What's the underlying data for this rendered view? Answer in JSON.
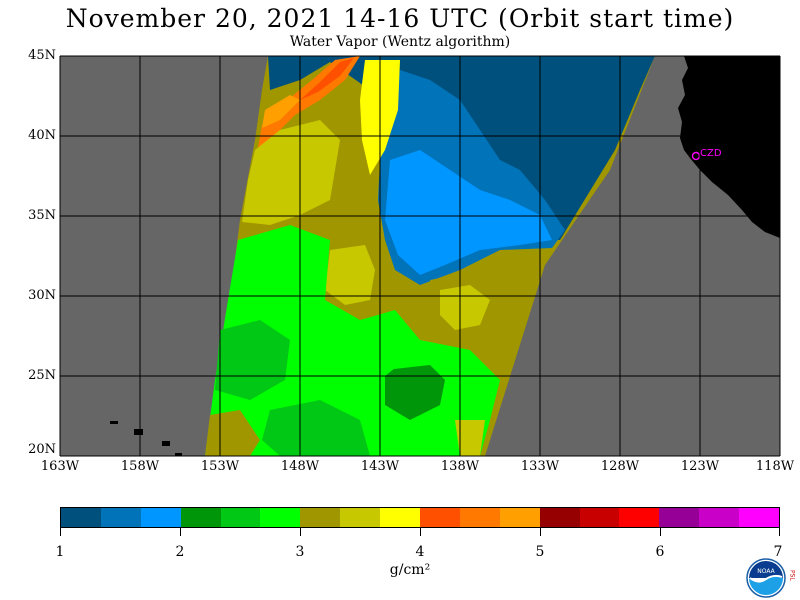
{
  "header": {
    "title": "November 20, 2021  14-16 UTC  (Orbit start time)",
    "subtitle": "Water Vapor (Wentz algorithm)"
  },
  "map": {
    "lat_labels": [
      "45N",
      "40N",
      "35N",
      "30N",
      "25N",
      "20N"
    ],
    "lon_labels": [
      "163W",
      "158W",
      "153W",
      "148W",
      "143W",
      "138W",
      "133W",
      "128W",
      "123W",
      "118W"
    ],
    "station_label": "CZD",
    "colors": {
      "no_data": "#666666",
      "land": "#000000",
      "grid": "#000000",
      "station": "#ff00ff"
    }
  },
  "colorbar": {
    "colors": [
      "#00507d",
      "#0073b9",
      "#0096ff",
      "#00960a",
      "#00c814",
      "#00ff00",
      "#a09600",
      "#c8c800",
      "#ffff00",
      "#ff5000",
      "#ff7800",
      "#ffa000",
      "#960000",
      "#c80000",
      "#ff0000",
      "#960096",
      "#c800c8",
      "#ff00ff"
    ],
    "tick_labels": [
      "1",
      "2",
      "3",
      "4",
      "5",
      "6",
      "7"
    ],
    "unit": "g/cm²"
  },
  "logo": {
    "noaa_text": "NOAA",
    "side_letters": "PSL"
  }
}
